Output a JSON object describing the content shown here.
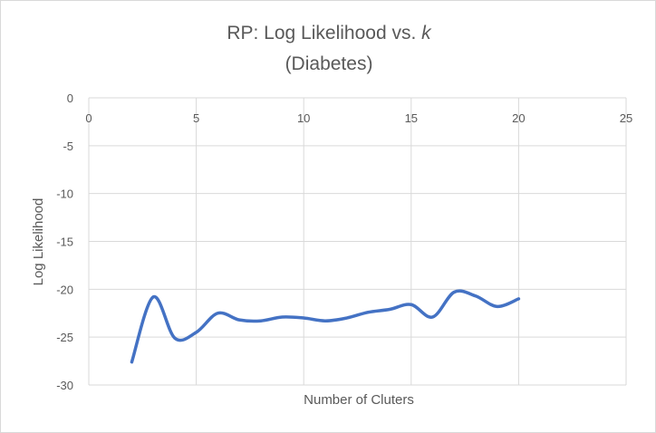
{
  "chart_data": {
    "type": "line",
    "title": "RP: Log Likelihood vs. k",
    "title_prefix": "RP: Log Likelihood vs. ",
    "title_var": "k",
    "subtitle": "(Diabetes)",
    "xlabel": "Number of Cluters",
    "ylabel": "Log Likelihood",
    "xlim": [
      0,
      25
    ],
    "ylim": [
      -30,
      0
    ],
    "x_ticks": [
      0,
      5,
      10,
      15,
      20,
      25
    ],
    "x_tick_labels": [
      "0",
      "5",
      "10",
      "15",
      "20",
      "25"
    ],
    "y_ticks": [
      0,
      -5,
      -10,
      -15,
      -20,
      -25,
      -30
    ],
    "y_tick_labels": [
      "0",
      "-5",
      "-10",
      "-15",
      "-20",
      "-25",
      "-30"
    ],
    "grid": true,
    "smoothed": true,
    "series": [
      {
        "color": "#4472c4",
        "x": [
          2,
          3,
          4,
          5,
          6,
          7,
          8,
          9,
          10,
          11,
          12,
          13,
          14,
          15,
          16,
          17,
          18,
          19,
          20
        ],
        "y": [
          -27.6,
          -20.8,
          -25.1,
          -24.5,
          -22.5,
          -23.2,
          -23.3,
          -22.9,
          -23.0,
          -23.3,
          -23.0,
          -22.4,
          -22.1,
          -21.6,
          -22.9,
          -20.3,
          -20.7,
          -21.8,
          -21.0
        ]
      }
    ]
  }
}
